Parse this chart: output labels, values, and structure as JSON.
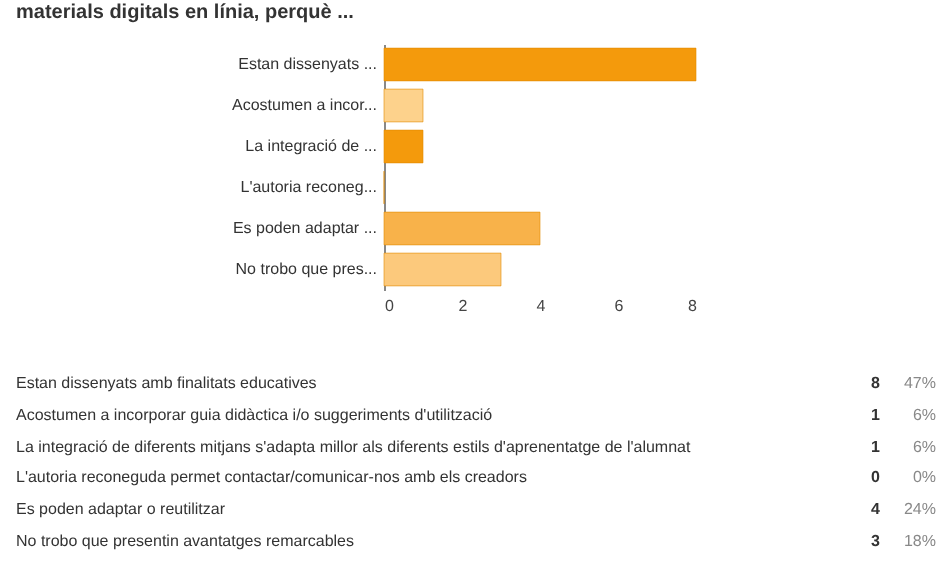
{
  "chart_data": {
    "type": "bar",
    "orientation": "horizontal",
    "title": "materials digitals en línia, perquè ...",
    "categories": [
      "Estan dissenyats ...",
      "Acostumen a incor...",
      "La integració de ...",
      "L'autoria reconeg...",
      "Es poden adaptar ...",
      "No trobo que pres..."
    ],
    "values": [
      8,
      1,
      1,
      0,
      4,
      3
    ],
    "colors": [
      "#f49a0c",
      "#fdd28c",
      "#f49a0c",
      "#f7b24a",
      "#f8b24a",
      "#fcc97c"
    ],
    "xlim": [
      0,
      8
    ],
    "xticks": [
      0,
      2,
      4,
      6,
      8
    ],
    "grid": false,
    "annotations": [
      "Estan dissenyats amb finalitats educatives",
      "Acostumen a incorporar guia didàctica i/o suggeriments d'utilització",
      "La integració de diferents mitjans s'adapta millor als diferents estils d'aprenentatge de l'alumnat",
      "L'autoria reconeguda permet contactar/comunicar-nos amb els creadors",
      "Es poden adaptar o reutilitzar",
      "No trobo que presentin avantatges remarcables",
      "8",
      "1",
      "1",
      "0",
      "4",
      "3",
      "47%",
      "6%",
      "6%",
      "0%",
      "24%",
      "18%"
    ]
  }
}
